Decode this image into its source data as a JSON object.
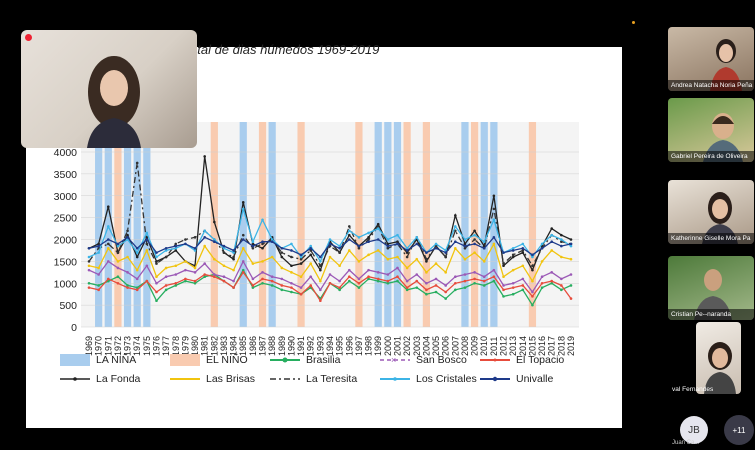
{
  "slide": {
    "title": "otal de dias húmedos 1969-2019"
  },
  "chart_data": {
    "type": "line",
    "title": "otal de dias húmedos 1969-2019",
    "x": [
      1969,
      1970,
      1971,
      1972,
      1973,
      1974,
      1975,
      1976,
      1977,
      1978,
      1979,
      1980,
      1981,
      1982,
      1983,
      1984,
      1985,
      1986,
      1987,
      1988,
      1989,
      1990,
      1991,
      1992,
      1993,
      1994,
      1995,
      1996,
      1997,
      1998,
      1999,
      2000,
      2001,
      2002,
      2003,
      2004,
      2005,
      2006,
      2007,
      2008,
      2009,
      2010,
      2011,
      2012,
      2013,
      2014,
      2015,
      2016,
      2017,
      2018,
      2019
    ],
    "ylim": [
      0,
      4000
    ],
    "yticks": [
      0,
      500,
      1000,
      1500,
      2000,
      2500,
      3000,
      3500,
      4000
    ],
    "grid": true,
    "nina_years": [
      1970,
      1971,
      1973,
      1974,
      1975,
      1985,
      1988,
      1999,
      2000,
      2001,
      2008,
      2010,
      2011
    ],
    "nino_years": [
      1972,
      1982,
      1987,
      1991,
      1997,
      2002,
      2004,
      2009,
      2015
    ],
    "series": [
      {
        "name": "Brasilia",
        "color": "#27ae60",
        "values": [
          1000,
          950,
          1050,
          1150,
          950,
          900,
          1050,
          600,
          850,
          950,
          1050,
          1000,
          1150,
          1200,
          1050,
          900,
          1300,
          900,
          1000,
          950,
          850,
          800,
          750,
          900,
          650,
          1000,
          850,
          1050,
          900,
          1100,
          1050,
          1000,
          1050,
          850,
          900,
          750,
          800,
          650,
          850,
          900,
          1000,
          950,
          1050,
          700,
          750,
          850,
          500,
          900,
          1000,
          850,
          950
        ]
      },
      {
        "name": "San Bosco",
        "color": "#9b59b6",
        "values": [
          1300,
          1200,
          1500,
          1350,
          1250,
          1100,
          1400,
          1000,
          1150,
          1200,
          1300,
          1250,
          1450,
          1200,
          1150,
          1050,
          1500,
          1100,
          1250,
          1150,
          1100,
          1000,
          900,
          1150,
          850,
          1200,
          1050,
          1300,
          1100,
          1300,
          1250,
          1200,
          1350,
          1050,
          1200,
          1000,
          1100,
          950,
          1150,
          1200,
          1250,
          1150,
          1300,
          950,
          1000,
          1100,
          800,
          1150,
          1250,
          1100,
          1200
        ]
      },
      {
        "name": "El Topacio",
        "color": "#e74c3c",
        "values": [
          900,
          850,
          1100,
          1000,
          900,
          850,
          1050,
          800,
          950,
          1000,
          1100,
          1050,
          1200,
          1150,
          1050,
          900,
          1250,
          950,
          1100,
          1050,
          950,
          900,
          750,
          950,
          600,
          1000,
          900,
          1150,
          1000,
          1150,
          1100,
          1050,
          1150,
          900,
          1050,
          850,
          950,
          800,
          1000,
          1050,
          1100,
          1050,
          1150,
          850,
          900,
          950,
          700,
          1000,
          1050,
          950,
          650
        ]
      },
      {
        "name": "La Fonda",
        "color": "#222222",
        "values": [
          1800,
          1900,
          2750,
          1700,
          2100,
          1600,
          2050,
          1500,
          1600,
          1750,
          1500,
          1400,
          3900,
          2400,
          1700,
          1550,
          2850,
          1900,
          1800,
          2050,
          1600,
          1400,
          1450,
          1650,
          1300,
          1950,
          1700,
          2100,
          1850,
          2050,
          2350,
          1900,
          1950,
          1700,
          2000,
          1500,
          1850,
          1600,
          2550,
          1900,
          2200,
          1850,
          3000,
          1400,
          1600,
          1700,
          1300,
          1850,
          2250,
          2100,
          2000
        ]
      },
      {
        "name": "Las Brisas",
        "color": "#f1c40f",
        "values": [
          1400,
          1350,
          1800,
          1500,
          1600,
          1300,
          1750,
          1150,
          1350,
          1400,
          1500,
          1350,
          1850,
          1550,
          1400,
          1300,
          1800,
          1450,
          1500,
          1600,
          1350,
          1250,
          1150,
          1450,
          1050,
          1600,
          1400,
          1750,
          1500,
          1650,
          1750,
          1550,
          1600,
          1350,
          1550,
          1250,
          1450,
          1250,
          1800,
          1550,
          1700,
          1500,
          1900,
          1150,
          1300,
          1400,
          1050,
          1500,
          1750,
          1600,
          1550
        ]
      },
      {
        "name": "La Teresita",
        "color": "#333333",
        "dash": "6,3,2,3",
        "values": [
          1500,
          1800,
          1900,
          1700,
          2200,
          3750,
          1900,
          1450,
          1600,
          1900,
          2000,
          2050,
          2200,
          2000,
          1700,
          1600,
          2100,
          1800,
          1900,
          2000,
          1700,
          1600,
          1550,
          1750,
          1400,
          1850,
          1700,
          2300,
          1800,
          2000,
          2300,
          1800,
          1900,
          1600,
          2050,
          1550,
          1850,
          1600,
          2200,
          1800,
          2000,
          1800,
          2700,
          1450,
          1650,
          1750,
          1400,
          1800,
          2100,
          1950,
          1900
        ]
      },
      {
        "name": "Los Cristales",
        "color": "#3cb4e6",
        "values": [
          1600,
          1700,
          2300,
          1850,
          2000,
          1700,
          2150,
          1600,
          1750,
          1800,
          1900,
          1750,
          2200,
          2000,
          1800,
          1700,
          2700,
          1950,
          2450,
          2000,
          1800,
          1900,
          1600,
          1850,
          1500,
          2000,
          1850,
          2200,
          2050,
          2150,
          2250,
          2000,
          2100,
          1800,
          2050,
          1700,
          1900,
          1750,
          2300,
          2000,
          2100,
          1950,
          2450,
          1700,
          1800,
          1900,
          1600,
          1900,
          2100,
          2000,
          1850
        ]
      },
      {
        "name": "Univalle",
        "color": "#1e3a8a",
        "values": [
          1800,
          1850,
          2000,
          1900,
          2050,
          1800,
          2000,
          1700,
          1800,
          1850,
          1900,
          1800,
          2050,
          1950,
          1850,
          1750,
          2000,
          1850,
          1950,
          1950,
          1800,
          1750,
          1650,
          1800,
          1600,
          1900,
          1800,
          2000,
          1850,
          1950,
          2000,
          1850,
          1900,
          1750,
          1900,
          1700,
          1800,
          1700,
          1950,
          1850,
          1900,
          1800,
          2050,
          1700,
          1750,
          1800,
          1650,
          1800,
          1950,
          1850,
          1900
        ]
      }
    ],
    "legend_labels": {
      "nina": "LA NIÑA",
      "nino": "EL NIÑO"
    }
  },
  "colors": {
    "nina_band": "#a9cdee",
    "nino_band": "#f9cbb0"
  },
  "participants": [
    {
      "name": "Andrea Natacha Noria Peña"
    },
    {
      "name": "Gabriel Pereira de Oliveira"
    },
    {
      "name": "Katherinne Giselle Mora Pa"
    },
    {
      "name": "Cristian Pe--naranda"
    },
    {
      "name": "val Fernandes"
    }
  ],
  "more_participants": "+11",
  "avatar_initials": "JB",
  "avatar_name": "Juan Ca..."
}
